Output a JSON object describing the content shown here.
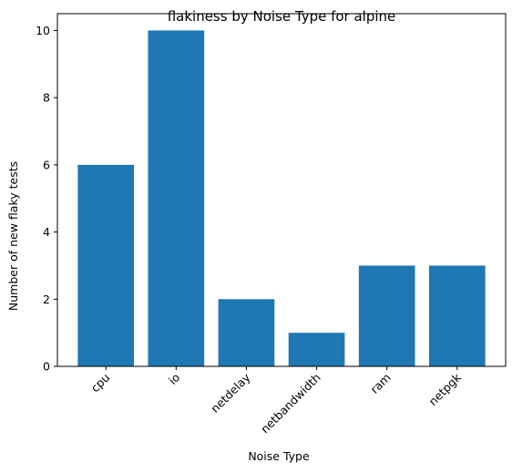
{
  "chart_data": {
    "type": "bar",
    "title": "flakiness by Noise Type for alpine",
    "xlabel": "Noise Type",
    "ylabel": "Number of new flaky tests",
    "categories": [
      "cpu",
      "io",
      "netdelay",
      "netbandwidth",
      "ram",
      "netpgk"
    ],
    "values": [
      6,
      10,
      2,
      1,
      3,
      3
    ],
    "yticks": [
      "0",
      "2",
      "4",
      "6",
      "8",
      "10"
    ],
    "ylim": [
      0,
      10.5
    ],
    "grid": false,
    "bar_color": "#1f77b4",
    "x_tick_rotation_deg": 45
  }
}
